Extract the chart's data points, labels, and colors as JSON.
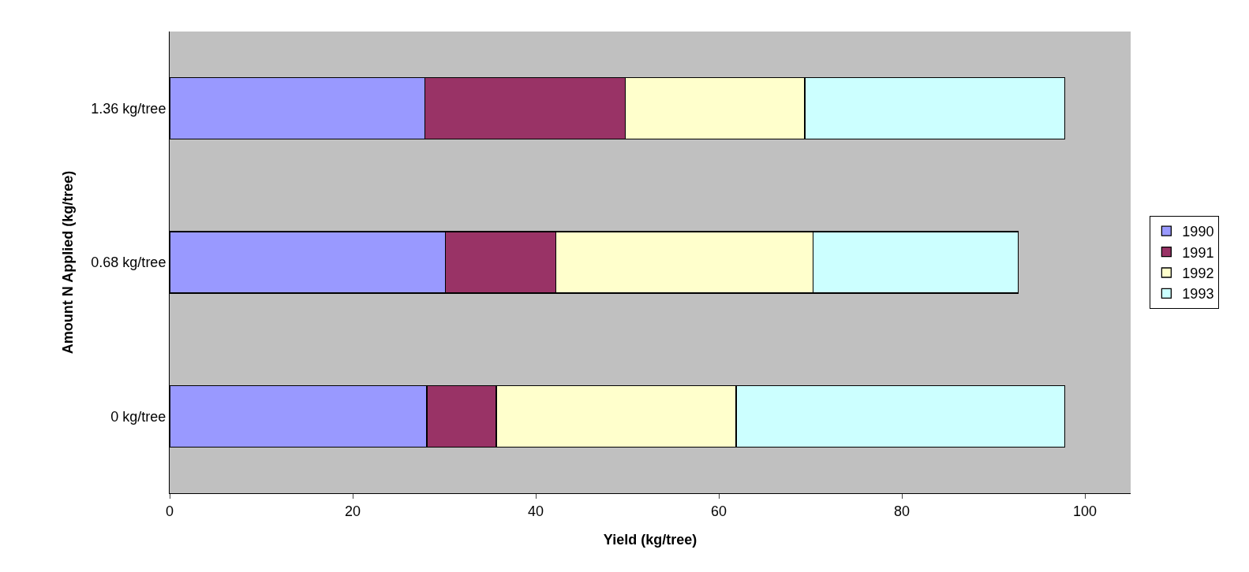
{
  "chart_data": {
    "type": "bar",
    "orientation": "horizontal",
    "stacked": true,
    "xlabel": "Yield (kg/tree)",
    "ylabel": "Amount N Applied (kg/tree)",
    "categories": [
      "1.36 kg/tree",
      "0.68 kg/tree",
      "0 kg/tree"
    ],
    "series": [
      {
        "name": "1990",
        "color": "#9999ff",
        "values": [
          27.9,
          30.1,
          28.1
        ]
      },
      {
        "name": "1991",
        "color": "#993366",
        "values": [
          21.9,
          12.1,
          7.6
        ]
      },
      {
        "name": "1992",
        "color": "#ffffcc",
        "values": [
          19.6,
          28.1,
          26.2
        ]
      },
      {
        "name": "1993",
        "color": "#ccffff",
        "values": [
          28.4,
          22.4,
          35.9
        ]
      }
    ],
    "xlim": [
      0,
      105
    ],
    "xticks": [
      0,
      20,
      40,
      60,
      80,
      100
    ],
    "grid": false,
    "legend": "right"
  }
}
